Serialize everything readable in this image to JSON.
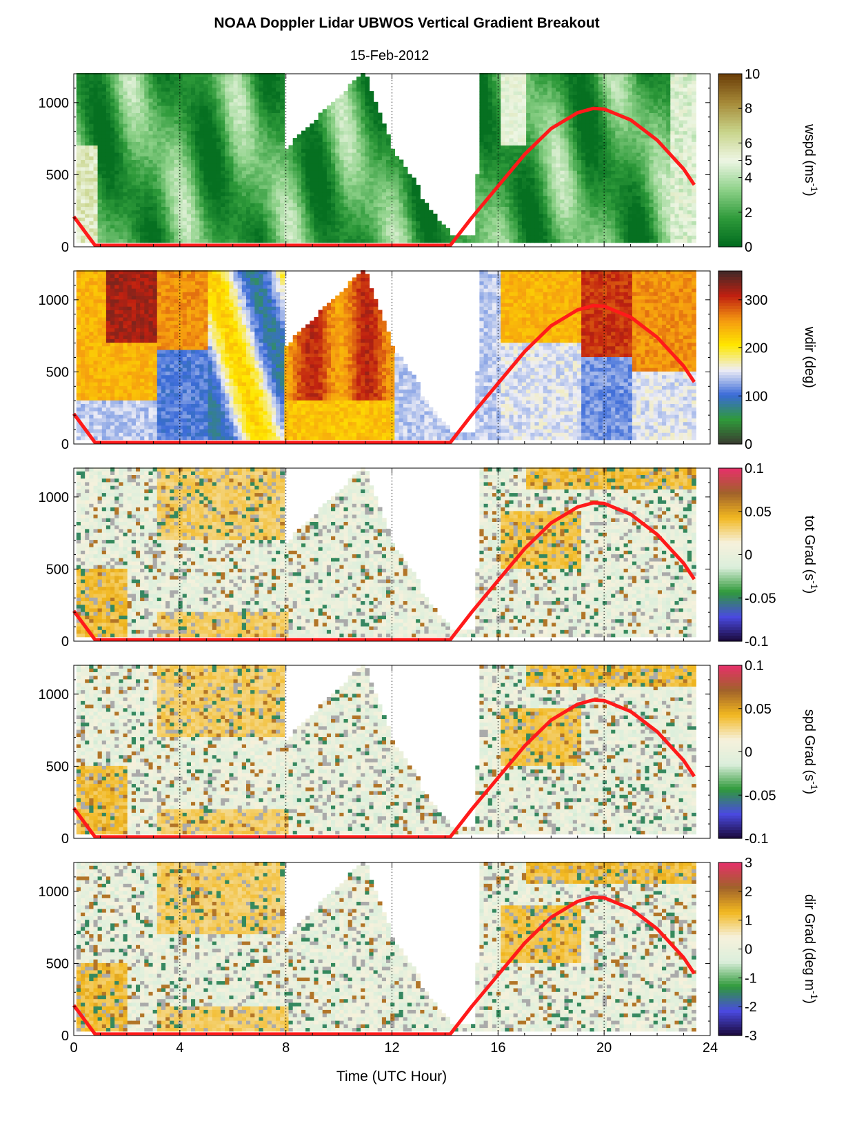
{
  "figure": {
    "title": "NOAA Doppler Lidar  UBWOS  Vertical Gradient Breakout",
    "date": "15-Feb-2012",
    "xlabel": "Time (UTC Hour)"
  },
  "chart_data": {
    "type": "heatmap",
    "x_ticks": [
      "0",
      "4",
      "8",
      "12",
      "16",
      "20",
      "24"
    ],
    "x_tick_values": [
      0,
      4,
      8,
      12,
      16,
      20,
      24
    ],
    "xlim": [
      0,
      24
    ],
    "ylim": [
      0,
      1200
    ],
    "y_ticks": [
      "0",
      "500",
      "1000"
    ],
    "y_tick_values": [
      0,
      500,
      1000
    ],
    "dotted_gridlines_x": [
      4,
      8,
      12,
      16,
      20
    ],
    "boundary_layer_curve": {
      "color": "#ff1a1a",
      "points": [
        [
          0.0,
          210
        ],
        [
          0.8,
          10
        ],
        [
          14.2,
          10
        ],
        [
          15.0,
          200
        ],
        [
          16.0,
          420
        ],
        [
          17.0,
          640
        ],
        [
          18.0,
          820
        ],
        [
          19.0,
          930
        ],
        [
          19.6,
          960
        ],
        [
          20.0,
          955
        ],
        [
          21.0,
          880
        ],
        [
          22.0,
          740
        ],
        [
          23.0,
          540
        ],
        [
          23.4,
          430
        ]
      ]
    },
    "panels": [
      {
        "id": "wspd",
        "colorbar_label": "wspd (ms",
        "colorbar_sup": "-1",
        "colorbar_close": ")",
        "range": [
          0,
          10
        ],
        "colorbar_ticks": [
          "0",
          "2",
          "4",
          "5",
          "6",
          "8",
          "10"
        ],
        "colorbar_tick_values": [
          0,
          2,
          4,
          5,
          6,
          8,
          10
        ],
        "colormap": [
          "#006a1e",
          "#2e9a3a",
          "#8fd28a",
          "#eef6e4",
          "#c8d48a",
          "#a68a38",
          "#6a3c08"
        ]
      },
      {
        "id": "wdir",
        "colorbar_label": "wdir (deg)",
        "colorbar_sup": "",
        "colorbar_close": "",
        "range": [
          0,
          360
        ],
        "colorbar_ticks": [
          "0",
          "100",
          "200",
          "300"
        ],
        "colorbar_tick_values": [
          0,
          100,
          200,
          300
        ],
        "colormap": [
          "#3a3a30",
          "#2f9a3a",
          "#3a6ad8",
          "#eeeef6",
          "#ffe800",
          "#f59a10",
          "#c02010",
          "#402828"
        ]
      },
      {
        "id": "totgrad",
        "colorbar_label": "tot Grad (s",
        "colorbar_sup": "-1",
        "colorbar_close": ")",
        "range": [
          -0.1,
          0.1
        ],
        "colorbar_ticks": [
          "-0.1",
          "-0.05",
          "0",
          "0.05",
          "0.1"
        ],
        "colorbar_tick_values": [
          -0.1,
          -0.05,
          0,
          0.05,
          0.1
        ],
        "colormap": [
          "#1a0838",
          "#4a4ae0",
          "#2f9a3a",
          "#dcefdc",
          "#f6f1dc",
          "#f2b820",
          "#a0622a",
          "#e6306a"
        ]
      },
      {
        "id": "spdgrad",
        "colorbar_label": "spd Grad (s",
        "colorbar_sup": "-1",
        "colorbar_close": ")",
        "range": [
          -0.1,
          0.1
        ],
        "colorbar_ticks": [
          "-0.1",
          "-0.05",
          "0",
          "0.05",
          "0.1"
        ],
        "colorbar_tick_values": [
          -0.1,
          -0.05,
          0,
          0.05,
          0.1
        ],
        "colormap": [
          "#1a0838",
          "#4a4ae0",
          "#2f9a3a",
          "#dcefdc",
          "#f6f1dc",
          "#f2b820",
          "#a0622a",
          "#e6306a"
        ]
      },
      {
        "id": "dirgrad",
        "colorbar_label": "dir Grad (deg m",
        "colorbar_sup": "-1",
        "colorbar_close": ")",
        "range": [
          -3,
          3
        ],
        "colorbar_ticks": [
          "-3",
          "-2",
          "-1",
          "0",
          "1",
          "2",
          "3"
        ],
        "colorbar_tick_values": [
          -3,
          -2,
          -1,
          0,
          1,
          2,
          3
        ],
        "colormap": [
          "#1a0838",
          "#4a4ae0",
          "#2f9a3a",
          "#dcefdc",
          "#f6f1dc",
          "#f2b820",
          "#a0622a",
          "#e6306a"
        ]
      }
    ]
  }
}
